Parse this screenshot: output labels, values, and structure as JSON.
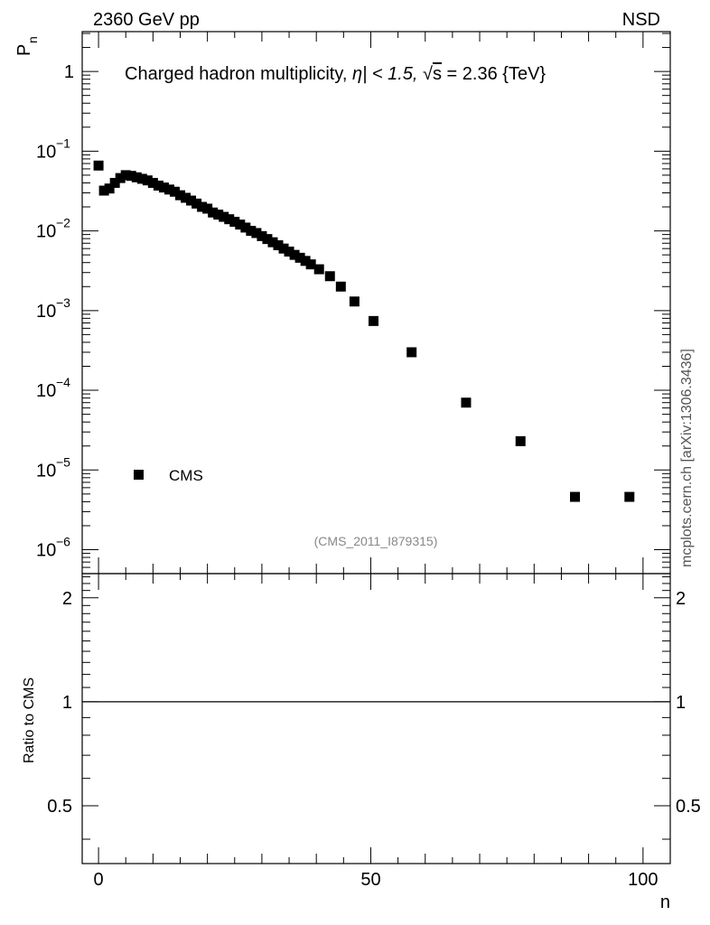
{
  "header": {
    "left_label": "2360 GeV pp",
    "right_label": "NSD"
  },
  "watermark": "mcplots.cern.ch [arXiv:1306.3436]",
  "analysis_id": "(CMS_2011_I879315)",
  "chart_data": [
    {
      "type": "scatter",
      "title": "Charged hadron multiplicity, η| < 1.5, √s = 2.36 {TeV}",
      "title_parts": {
        "main": "Charged hadron multiplicity, ",
        "eta": "η| < 1.5, ",
        "sqrt_symbol": "√",
        "sqrt_arg": "s",
        "rest": " = 2.36 {TeV}"
      },
      "ylabel": "P",
      "ylabel_sub": "n",
      "yscale": "log",
      "xlim": [
        -3,
        105
      ],
      "ylim_log10": [
        -6.3,
        0.5
      ],
      "y_ticks": [
        {
          "base": "1",
          "exp": ""
        },
        {
          "base": "10",
          "exp": "−1"
        },
        {
          "base": "10",
          "exp": "−2"
        },
        {
          "base": "10",
          "exp": "−3"
        },
        {
          "base": "10",
          "exp": "−4"
        },
        {
          "base": "10",
          "exp": "−5"
        },
        {
          "base": "10",
          "exp": "−6"
        }
      ],
      "y_tick_values_log10": [
        0,
        -1,
        -2,
        -3,
        -4,
        -5,
        -6
      ],
      "legend": {
        "entry": "CMS",
        "position": "bottom-left"
      },
      "series": [
        {
          "name": "CMS",
          "marker": "square",
          "x": [
            0,
            1,
            2,
            3,
            4,
            5,
            6,
            7,
            8,
            9,
            10,
            11,
            12,
            13,
            14,
            15,
            16,
            17,
            18,
            19,
            20,
            21,
            22,
            23,
            24,
            25,
            26,
            27,
            28,
            29,
            30,
            31,
            32,
            33,
            34,
            35,
            36,
            37,
            38,
            39,
            40.5,
            42.5,
            44.5,
            47,
            50.5,
            57.5,
            67.5,
            77.5,
            87.5,
            97.5
          ],
          "y": [
            0.066,
            0.032,
            0.034,
            0.04,
            0.046,
            0.05,
            0.049,
            0.047,
            0.045,
            0.043,
            0.04,
            0.037,
            0.035,
            0.033,
            0.031,
            0.028,
            0.026,
            0.024,
            0.022,
            0.02,
            0.019,
            0.017,
            0.016,
            0.015,
            0.014,
            0.013,
            0.012,
            0.011,
            0.01,
            0.0094,
            0.0086,
            0.0079,
            0.0072,
            0.0066,
            0.006,
            0.0055,
            0.005,
            0.0046,
            0.0042,
            0.0038,
            0.0033,
            0.0027,
            0.002,
            0.0013,
            0.00074,
            0.0003,
            7e-05,
            2.3e-05,
            4.6e-06,
            4.6e-06
          ]
        }
      ]
    },
    {
      "type": "line",
      "ylabel": "Ratio to CMS",
      "xlabel": "n",
      "xlim": [
        -3,
        105
      ],
      "ylim": [
        0.34,
        2.35
      ],
      "x_ticks": [
        "0",
        "50",
        "100"
      ],
      "x_tick_values": [
        0,
        50,
        100
      ],
      "y_ticks": [
        "0.5",
        "1",
        "2"
      ],
      "y_tick_values": [
        0.5,
        1,
        2
      ],
      "reference_line": 1
    }
  ]
}
